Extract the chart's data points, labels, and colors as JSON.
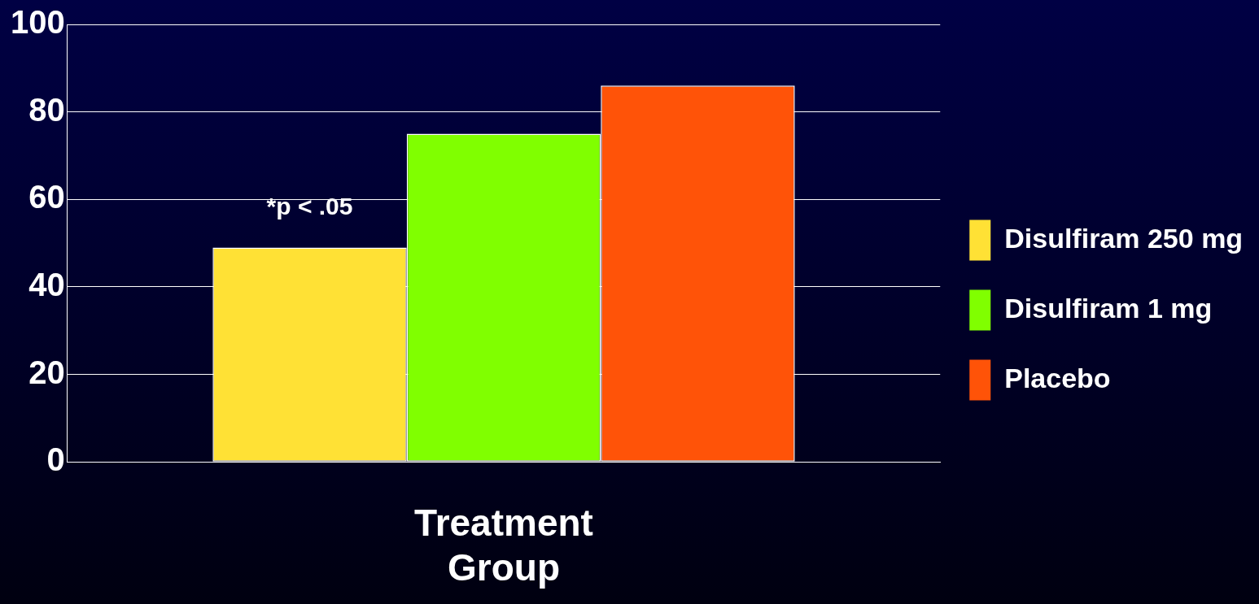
{
  "chart_data": {
    "type": "bar",
    "xlabel": "Treatment Group",
    "categories": [
      null
    ],
    "series": [
      {
        "name": "Disulfiram 250 mg",
        "color": "#ffe135",
        "values": [
          49
        ]
      },
      {
        "name": "Disulfiram 1 mg",
        "color": "#80ff00",
        "values": [
          75
        ]
      },
      {
        "name": "Placebo",
        "color": "#ff5308",
        "values": [
          86
        ]
      }
    ],
    "ylim": [
      0,
      100
    ],
    "yticks": [
      0,
      20,
      40,
      60,
      80,
      100
    ],
    "grid": "y",
    "legend": "right",
    "annotations": [
      "*p < .05"
    ]
  }
}
